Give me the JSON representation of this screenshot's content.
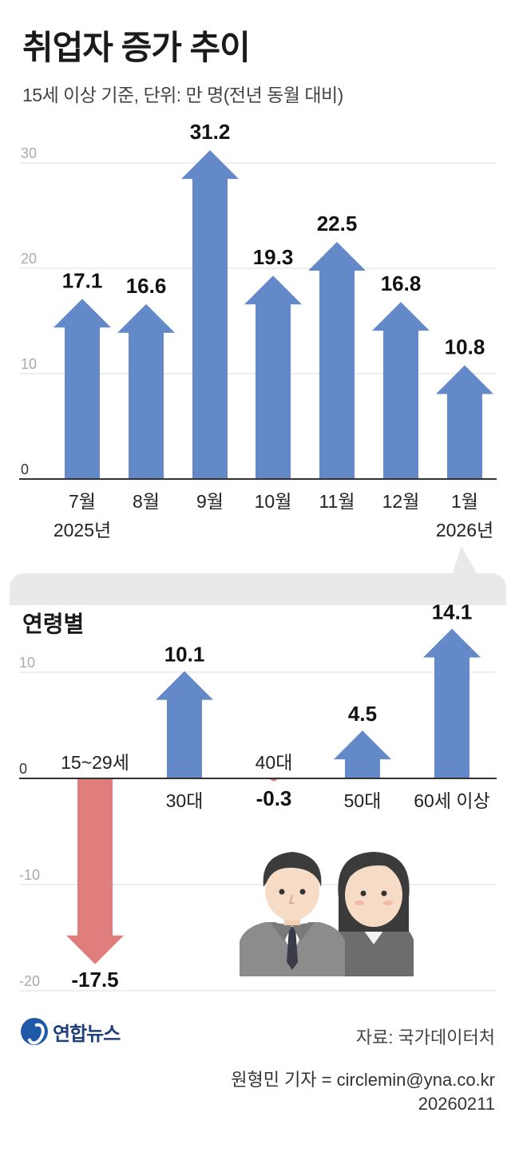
{
  "header": {
    "title": "취업자 증가 추이",
    "subtitle": "15세 이상 기준, 단위: 만 명(전년 동월 대비)"
  },
  "colors": {
    "positive": "#6389c8",
    "negative": "#e07e7e",
    "grid": "#dcdcdc",
    "axis": "#333333"
  },
  "chart_data": [
    {
      "type": "bar",
      "categories": [
        "7월",
        "8월",
        "9월",
        "10월",
        "11월",
        "12월",
        "1월"
      ],
      "year_labels": [
        "2025년",
        "",
        "",
        "",
        "",
        "",
        "2026년"
      ],
      "values": [
        17.1,
        16.6,
        31.2,
        19.3,
        22.5,
        16.8,
        10.8
      ],
      "ylim": [
        0,
        30
      ],
      "yticks": [
        0,
        10,
        20,
        30
      ],
      "grid": true
    },
    {
      "type": "bar",
      "title": "연령별",
      "categories": [
        "15~29세",
        "30대",
        "40대",
        "50대",
        "60세 이상"
      ],
      "values": [
        -17.5,
        10.1,
        -0.3,
        4.5,
        14.1
      ],
      "ylim": [
        -20,
        10
      ],
      "yticks": [
        10,
        0,
        -10,
        -20
      ],
      "grid": true
    }
  ],
  "footer": {
    "logo": "연합뉴스",
    "source": "자료: 국가데이터처",
    "credit": "원형민 기자 = circlemin@yna.co.kr",
    "date": "20260211"
  }
}
